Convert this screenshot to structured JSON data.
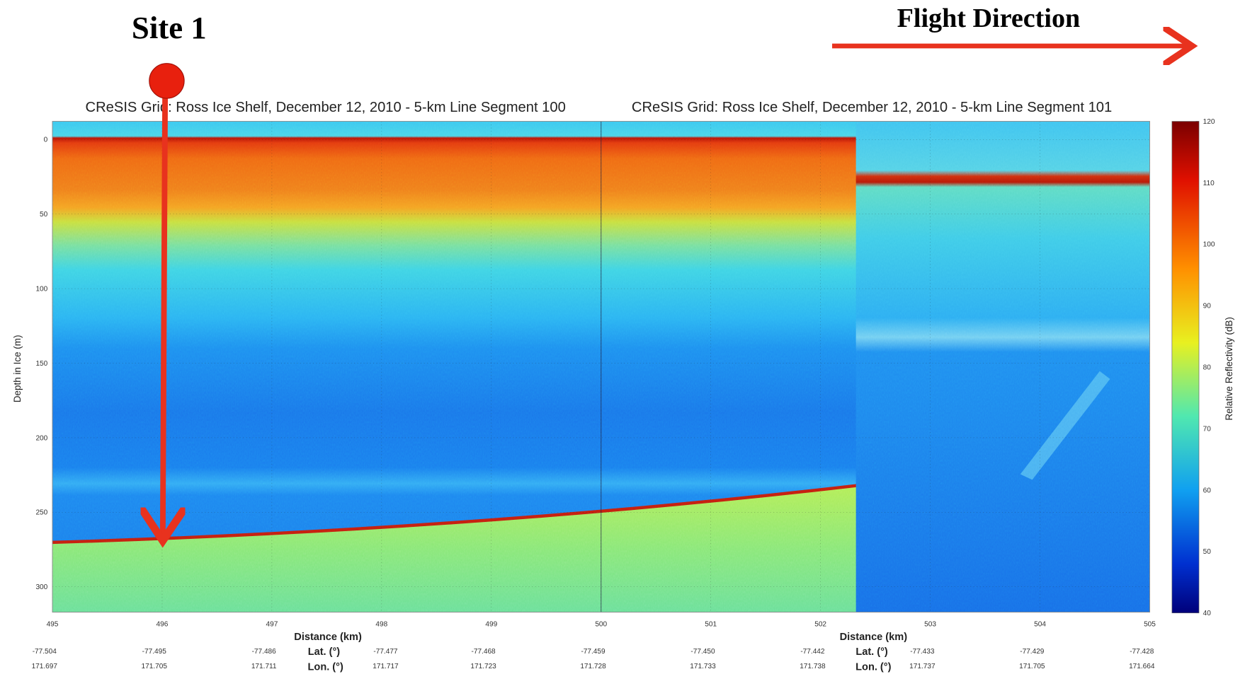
{
  "annotations": {
    "site_label": "Site 1",
    "flight_direction": "Flight Direction"
  },
  "panels": [
    {
      "title": "CReSIS Grid: Ross Ice Shelf, December 12, 2010 - 5-km Line Segment 100",
      "x_axis_label": "Distance (km)",
      "lat_label": "Lat. (°)",
      "lon_label": "Lon. (°)"
    },
    {
      "title": "CReSIS Grid: Ross Ice Shelf, December 12, 2010 - 5-km Line Segment 101",
      "x_axis_label": "Distance (km)",
      "lat_label": "Lat. (°)",
      "lon_label": "Lon. (°)"
    }
  ],
  "y_axis": {
    "label": "Depth in Ice (m)",
    "ticks": [
      "0",
      "50",
      "100",
      "150",
      "200",
      "250",
      "300"
    ]
  },
  "x_axis": {
    "ticks": [
      "495",
      "496",
      "497",
      "498",
      "499",
      "500",
      "501",
      "502",
      "503",
      "504",
      "505"
    ]
  },
  "lat_values": [
    "-77.504",
    "-77.495",
    "-77.486",
    "-77.477",
    "-77.468",
    "-77.459",
    "-77.450",
    "-77.442",
    "-77.433",
    "-77.429",
    "-77.428"
  ],
  "lon_values": [
    "171.697",
    "171.705",
    "171.711",
    "171.717",
    "171.723",
    "171.728",
    "171.733",
    "171.738",
    "171.737",
    "171.705",
    "171.664"
  ],
  "colorbar": {
    "label": "Relative Reflectivity (dB)",
    "ticks": [
      "120",
      "110",
      "100",
      "90",
      "80",
      "70",
      "60",
      "50",
      "40"
    ]
  }
}
